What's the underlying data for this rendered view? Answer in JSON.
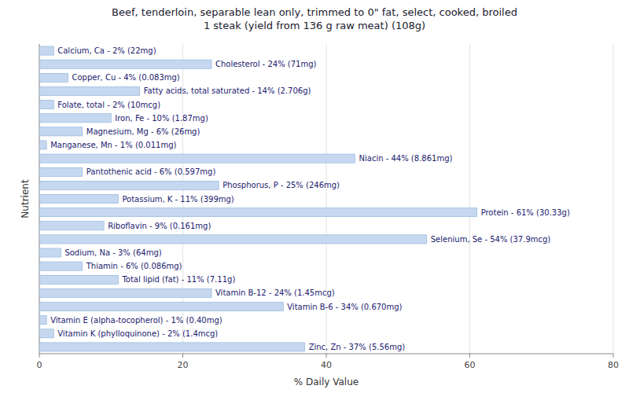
{
  "chart_data": {
    "type": "bar",
    "orientation": "horizontal",
    "title": "Beef, tenderloin, separable lean only, trimmed to 0\" fat, select, cooked, broiled\n1 steak (yield from 136 g raw meat) (108g)",
    "xlabel": "% Daily Value",
    "ylabel": "Nutrient",
    "categories": [
      "Calcium, Ca - 2% (22mg)",
      "Cholesterol - 24% (71mg)",
      "Copper, Cu - 4% (0.083mg)",
      "Fatty acids, total saturated - 14% (2.706g)",
      "Folate, total - 2% (10mcg)",
      "Iron, Fe - 10% (1.87mg)",
      "Magnesium, Mg - 6% (26mg)",
      "Manganese, Mn - 1% (0.011mg)",
      "Niacin - 44% (8.861mg)",
      "Pantothenic acid - 6% (0.597mg)",
      "Phosphorus, P - 25% (246mg)",
      "Potassium, K - 11% (399mg)",
      "Protein - 61% (30.33g)",
      "Riboflavin - 9% (0.161mg)",
      "Selenium, Se - 54% (37.9mcg)",
      "Sodium, Na - 3% (64mg)",
      "Thiamin - 6% (0.086mg)",
      "Total lipid (fat) - 11% (7.11g)",
      "Vitamin B-12 - 24% (1.45mcg)",
      "Vitamin B-6 - 34% (0.670mg)",
      "Vitamin E (alpha-tocopherol) - 1% (0.40mg)",
      "Vitamin K (phylloquinone) - 2% (1.4mcg)",
      "Zinc, Zn - 37% (5.56mg)"
    ],
    "values": [
      2,
      24,
      4,
      14,
      2,
      10,
      6,
      1,
      44,
      6,
      25,
      11,
      61,
      9,
      54,
      3,
      6,
      11,
      24,
      34,
      1,
      2,
      37
    ],
    "color": "#c5d8f0",
    "xlim": [
      0,
      80
    ],
    "xticks": [
      0,
      20,
      40,
      60,
      80
    ],
    "grid": true,
    "tick_labels": "x"
  }
}
